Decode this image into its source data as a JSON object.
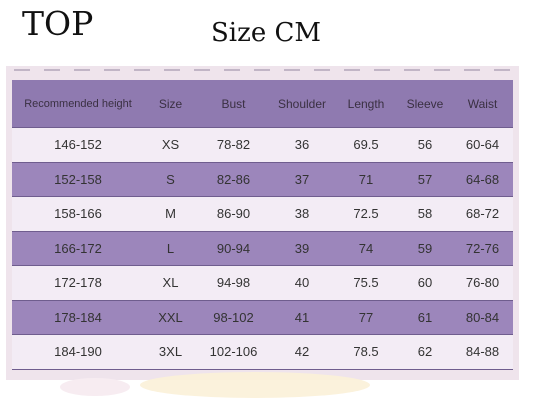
{
  "header": {
    "title": "TOP",
    "subtitle": "Size CM"
  },
  "table": {
    "columns": [
      "Recommended height",
      "Size",
      "Bust",
      "Shoulder",
      "Length",
      "Sleeve",
      "Waist"
    ],
    "rows": [
      [
        "146-152",
        "XS",
        "78-82",
        "36",
        "69.5",
        "56",
        "60-64"
      ],
      [
        "152-158",
        "S",
        "82-86",
        "37",
        "71",
        "57",
        "64-68"
      ],
      [
        "158-166",
        "M",
        "86-90",
        "38",
        "72.5",
        "58",
        "68-72"
      ],
      [
        "166-172",
        "L",
        "90-94",
        "39",
        "74",
        "59",
        "72-76"
      ],
      [
        "172-178",
        "XL",
        "94-98",
        "40",
        "75.5",
        "60",
        "76-80"
      ],
      [
        "178-184",
        "XXL",
        "98-102",
        "41",
        "77",
        "61",
        "80-84"
      ],
      [
        "184-190",
        "3XL",
        "102-106",
        "42",
        "78.5",
        "62",
        "84-88"
      ]
    ]
  },
  "colors": {
    "header_row": "#8f7ab0",
    "dark_row": "#9c86bb",
    "light_row": "#f3ecf5",
    "frame_background": "#efe4ec"
  }
}
